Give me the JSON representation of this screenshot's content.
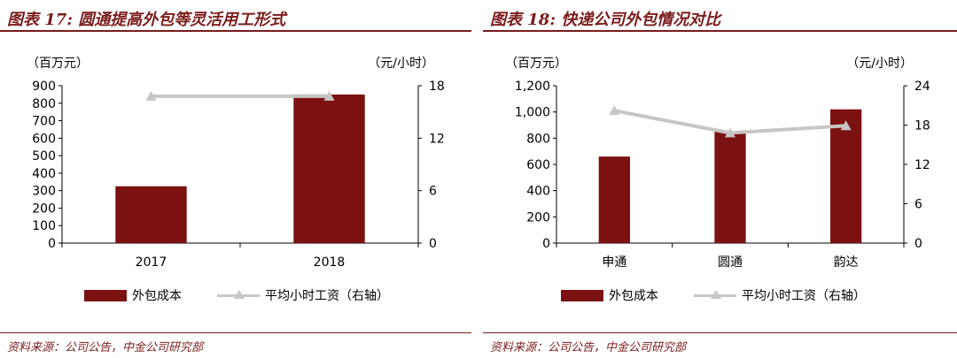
{
  "panels": [
    {
      "title": "图表 17: 圆通提高外包等灵活用工形式",
      "source": "资料来源：公司公告，中金公司研究部"
    },
    {
      "title": "图表 18: 快递公司外包情况对比",
      "source": "资料来源：公司公告，中金公司研究部"
    }
  ],
  "colors": {
    "bar": "#7b1111",
    "line": "#c8c6c4",
    "accent": "#7b1c1c"
  },
  "chart_data": [
    {
      "type": "bar",
      "categories": [
        "2017",
        "2018"
      ],
      "series": [
        {
          "name": "外包成本",
          "type": "bar",
          "axis": "left",
          "values": [
            325,
            850
          ]
        },
        {
          "name": "平均小时工资（右轴）",
          "type": "line",
          "axis": "right",
          "values": [
            16.8,
            16.8
          ]
        }
      ],
      "y_left": {
        "unit_label": "（百万元）",
        "ylim": [
          0,
          900
        ],
        "ticks": [
          0,
          100,
          200,
          300,
          400,
          500,
          600,
          700,
          800,
          900
        ],
        "tick_labels": [
          "0",
          "100",
          "200",
          "300",
          "400",
          "500",
          "600",
          "700",
          "800",
          "900"
        ]
      },
      "y_right": {
        "unit_label": "（元/小时）",
        "ylim": [
          0,
          18
        ],
        "ticks": [
          0,
          6,
          12,
          18
        ],
        "tick_labels": [
          "0",
          "6",
          "12",
          "18"
        ]
      },
      "legend": [
        "外包成本",
        "平均小时工资（右轴）"
      ],
      "legend_position": "bottom",
      "grid": false
    },
    {
      "type": "bar",
      "categories": [
        "申通",
        "圆通",
        "韵达"
      ],
      "series": [
        {
          "name": "外包成本",
          "type": "bar",
          "axis": "left",
          "values": [
            660,
            850,
            1020
          ]
        },
        {
          "name": "平均小时工资（右轴）",
          "type": "line",
          "axis": "right",
          "values": [
            20.2,
            16.8,
            17.9
          ]
        }
      ],
      "y_left": {
        "unit_label": "（百万元）",
        "ylim": [
          0,
          1200
        ],
        "ticks": [
          0,
          200,
          400,
          600,
          800,
          1000,
          1200
        ],
        "tick_labels": [
          "0",
          "200",
          "400",
          "600",
          "800",
          "1,000",
          "1,200"
        ]
      },
      "y_right": {
        "unit_label": "（元/小时）",
        "ylim": [
          0,
          24
        ],
        "ticks": [
          0,
          6,
          12,
          18,
          24
        ],
        "tick_labels": [
          "0",
          "6",
          "12",
          "18",
          "24"
        ]
      },
      "legend": [
        "外包成本",
        "平均小时工资（右轴）"
      ],
      "legend_position": "bottom",
      "grid": false
    }
  ]
}
